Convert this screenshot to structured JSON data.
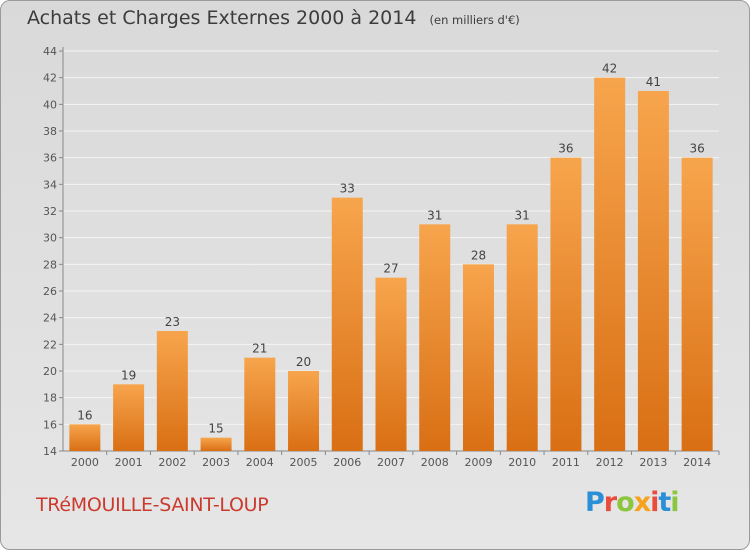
{
  "header": {
    "title": "Achats et Charges Externes 2000 à 2014",
    "subtitle": "(en milliers d'€)"
  },
  "footer": {
    "commune": "TRéMOUILLE-SAINT-LOUP",
    "logo": "Proxiti"
  },
  "colors": {
    "bar_top": "#f7a54d",
    "bar_bottom": "#d96f14",
    "grid": "#f4f4f4",
    "axis_text": "#555555",
    "commune_text": "#cc3a2e"
  },
  "chart_data": {
    "type": "bar",
    "title": "Achats et Charges Externes 2000 à 2014",
    "subtitle": "(en milliers d'€)",
    "categories": [
      "2000",
      "2001",
      "2002",
      "2003",
      "2004",
      "2005",
      "2006",
      "2007",
      "2008",
      "2009",
      "2010",
      "2011",
      "2012",
      "2013",
      "2014"
    ],
    "values": [
      16,
      19,
      23,
      15,
      21,
      20,
      33,
      27,
      31,
      28,
      31,
      36,
      42,
      41,
      36
    ],
    "ylim": [
      14,
      44
    ],
    "yticks": [
      14,
      16,
      18,
      20,
      22,
      24,
      26,
      28,
      30,
      32,
      34,
      36,
      38,
      40,
      42,
      44
    ],
    "grid": true,
    "data_labels": true
  }
}
